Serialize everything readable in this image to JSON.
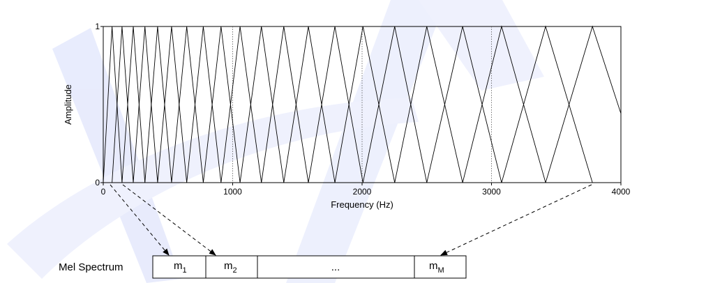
{
  "chart_data": {
    "type": "line",
    "description_free": true,
    "xlabel": "Frequency (Hz)",
    "ylabel": "Amplitude",
    "xlim": [
      0,
      4000
    ],
    "ylim": [
      0,
      1
    ],
    "x_ticks": [
      "0",
      "1000",
      "2000",
      "3000",
      "4000"
    ],
    "y_ticks": [
      "0",
      "1"
    ],
    "reference_lines_x": [
      1000,
      2000,
      3000
    ],
    "filter_peaks_hz": [
      68,
      145,
      232,
      322,
      420,
      528,
      645,
      773,
      910,
      1057,
      1222,
      1395,
      1585,
      1790,
      2007,
      2252,
      2500,
      2777,
      3078,
      3418,
      3780
    ]
  },
  "mel_spectrum": {
    "label": "Mel Spectrum",
    "cells": [
      {
        "main": "m",
        "sub": "1"
      },
      {
        "main": "m",
        "sub": "2"
      },
      {
        "main": "...",
        "sub": ""
      },
      {
        "main": "m",
        "sub": "M"
      }
    ]
  },
  "colors": {
    "watermark": "#d6dcfb",
    "lines": "#000000"
  }
}
